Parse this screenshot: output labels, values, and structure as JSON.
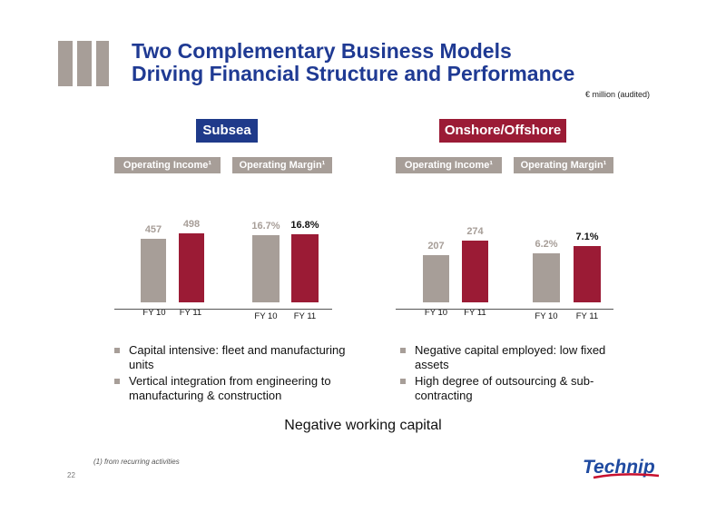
{
  "title": {
    "line1": "Two Complementary Business Models",
    "line2": "Driving Financial Structure and Performance"
  },
  "unit_note": "€ million (audited)",
  "colors": {
    "title_blue": "#1f3a93",
    "subsea_blue": "#1f3a8a",
    "onshore_red": "#9b1b35",
    "gray": "#a79e98"
  },
  "sections": {
    "subsea": {
      "label": "Subsea",
      "metric1": "Operating Income¹",
      "metric2": "Operating Margin¹",
      "bullets": [
        "Capital intensive: fleet and manufacturing units",
        "Vertical integration from engineering to manufacturing & construction"
      ]
    },
    "onshore": {
      "label": "Onshore/Offshore",
      "metric1": "Operating Income¹",
      "metric2": "Operating Margin¹",
      "bullets": [
        "Negative capital employed: low fixed assets",
        "High degree of outsourcing & sub-contracting"
      ]
    }
  },
  "chart_data": [
    {
      "type": "bar",
      "title": "Subsea Operating Income¹",
      "categories": [
        "FY 10",
        "FY 11"
      ],
      "values": [
        457,
        498
      ],
      "labels": [
        "457",
        "498"
      ]
    },
    {
      "type": "bar",
      "title": "Subsea Operating Margin¹",
      "categories": [
        "FY 10",
        "FY 11"
      ],
      "values": [
        16.7,
        16.8
      ],
      "labels": [
        "16.7%",
        "16.8%"
      ]
    },
    {
      "type": "bar",
      "title": "Onshore/Offshore Operating Income¹",
      "categories": [
        "FY 10",
        "FY 11"
      ],
      "values": [
        207,
        274
      ],
      "labels": [
        "207",
        "274"
      ]
    },
    {
      "type": "bar",
      "title": "Onshore/Offshore Operating Margin¹",
      "categories": [
        "FY 10",
        "FY 11"
      ],
      "values": [
        6.2,
        7.1
      ],
      "labels": [
        "6.2%",
        "7.1%"
      ]
    }
  ],
  "conclusion": "Negative working capital",
  "footnote": "(1) from recurring activities",
  "page_number": "22",
  "logo_text": "Technip"
}
